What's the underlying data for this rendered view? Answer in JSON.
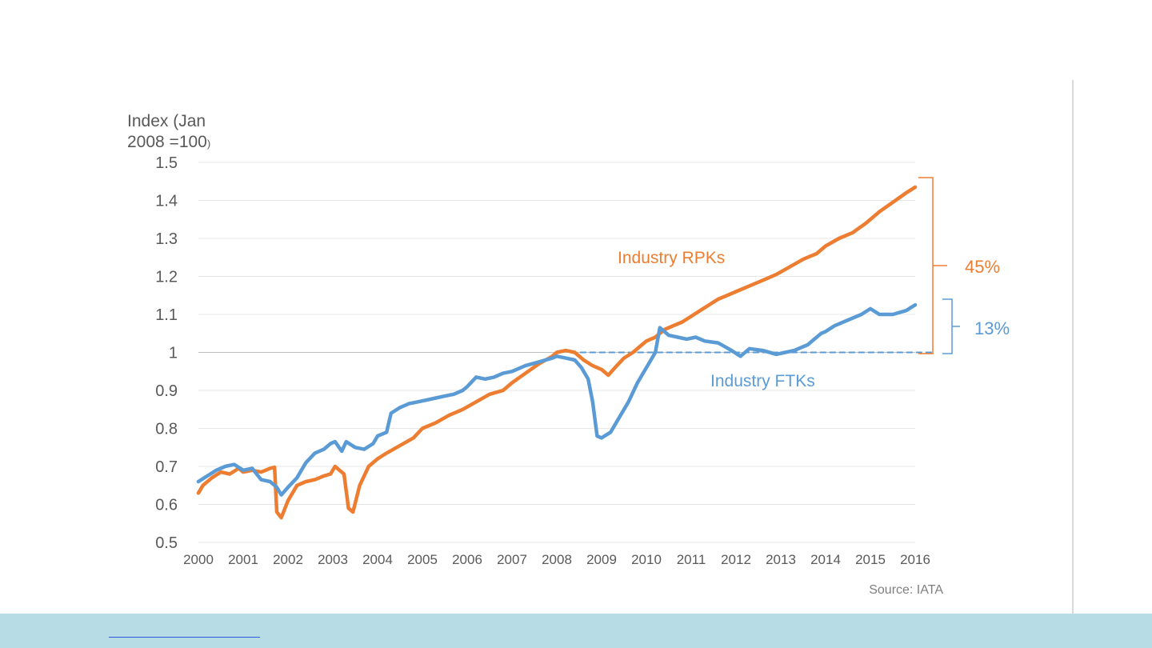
{
  "chart_data": {
    "type": "line",
    "ylabel_line1": "Index (Jan",
    "ylabel_line2": "2008 =100",
    "ylabel_paren": ")",
    "source": "Source: IATA",
    "ylim": [
      0.5,
      1.5
    ],
    "yticks": [
      "0.5",
      "0.6",
      "0.7",
      "0.8",
      "0.9",
      "1",
      "1.1",
      "1.2",
      "1.3",
      "1.4",
      "1.5"
    ],
    "xlim": [
      2000,
      2016
    ],
    "xticks": [
      "2000",
      "2001",
      "2002",
      "2003",
      "2004",
      "2005",
      "2006",
      "2007",
      "2008",
      "2009",
      "2010",
      "2011",
      "2012",
      "2013",
      "2014",
      "2015",
      "2016"
    ],
    "grid": true,
    "reference_line": {
      "y": 1.0,
      "style": "dashed",
      "from_x": 2008.3,
      "to_x": 2016.4
    },
    "series": [
      {
        "name": "Industry RPKs",
        "color": "#ed7d31",
        "points": [
          [
            2000,
            0.63
          ],
          [
            2000.1,
            0.65
          ],
          [
            2000.3,
            0.67
          ],
          [
            2000.5,
            0.685
          ],
          [
            2000.7,
            0.68
          ],
          [
            2000.9,
            0.695
          ],
          [
            2001.0,
            0.685
          ],
          [
            2001.2,
            0.69
          ],
          [
            2001.4,
            0.685
          ],
          [
            2001.5,
            0.69
          ],
          [
            2001.6,
            0.695
          ],
          [
            2001.7,
            0.698
          ],
          [
            2001.75,
            0.58
          ],
          [
            2001.85,
            0.565
          ],
          [
            2002.0,
            0.61
          ],
          [
            2002.2,
            0.65
          ],
          [
            2002.4,
            0.66
          ],
          [
            2002.6,
            0.665
          ],
          [
            2002.8,
            0.675
          ],
          [
            2002.95,
            0.68
          ],
          [
            2003.05,
            0.7
          ],
          [
            2003.15,
            0.69
          ],
          [
            2003.25,
            0.68
          ],
          [
            2003.35,
            0.59
          ],
          [
            2003.45,
            0.58
          ],
          [
            2003.6,
            0.65
          ],
          [
            2003.8,
            0.7
          ],
          [
            2004.0,
            0.72
          ],
          [
            2004.2,
            0.735
          ],
          [
            2004.5,
            0.755
          ],
          [
            2004.8,
            0.775
          ],
          [
            2005.0,
            0.8
          ],
          [
            2005.3,
            0.815
          ],
          [
            2005.6,
            0.835
          ],
          [
            2005.9,
            0.85
          ],
          [
            2006.2,
            0.87
          ],
          [
            2006.5,
            0.89
          ],
          [
            2006.8,
            0.9
          ],
          [
            2007.0,
            0.92
          ],
          [
            2007.3,
            0.945
          ],
          [
            2007.6,
            0.97
          ],
          [
            2007.9,
            0.99
          ],
          [
            2008.0,
            1.0
          ],
          [
            2008.2,
            1.005
          ],
          [
            2008.4,
            1.0
          ],
          [
            2008.6,
            0.98
          ],
          [
            2008.8,
            0.965
          ],
          [
            2009.0,
            0.955
          ],
          [
            2009.15,
            0.94
          ],
          [
            2009.3,
            0.96
          ],
          [
            2009.5,
            0.985
          ],
          [
            2009.7,
            1.0
          ],
          [
            2009.9,
            1.02
          ],
          [
            2010.0,
            1.03
          ],
          [
            2010.2,
            1.04
          ],
          [
            2010.4,
            1.06
          ],
          [
            2010.6,
            1.07
          ],
          [
            2010.8,
            1.08
          ],
          [
            2011.0,
            1.095
          ],
          [
            2011.2,
            1.11
          ],
          [
            2011.4,
            1.125
          ],
          [
            2011.6,
            1.14
          ],
          [
            2011.8,
            1.15
          ],
          [
            2012.0,
            1.16
          ],
          [
            2012.3,
            1.175
          ],
          [
            2012.6,
            1.19
          ],
          [
            2012.9,
            1.205
          ],
          [
            2013.2,
            1.225
          ],
          [
            2013.5,
            1.245
          ],
          [
            2013.8,
            1.26
          ],
          [
            2014.0,
            1.28
          ],
          [
            2014.3,
            1.3
          ],
          [
            2014.6,
            1.315
          ],
          [
            2014.9,
            1.34
          ],
          [
            2015.2,
            1.37
          ],
          [
            2015.5,
            1.395
          ],
          [
            2015.8,
            1.42
          ],
          [
            2016.0,
            1.435
          ]
        ]
      },
      {
        "name": "Industry FTKs",
        "color": "#5b9bd5",
        "points": [
          [
            2000,
            0.66
          ],
          [
            2000.2,
            0.675
          ],
          [
            2000.4,
            0.69
          ],
          [
            2000.6,
            0.7
          ],
          [
            2000.8,
            0.705
          ],
          [
            2001.0,
            0.69
          ],
          [
            2001.2,
            0.695
          ],
          [
            2001.4,
            0.665
          ],
          [
            2001.6,
            0.66
          ],
          [
            2001.75,
            0.645
          ],
          [
            2001.85,
            0.625
          ],
          [
            2002.0,
            0.645
          ],
          [
            2002.2,
            0.67
          ],
          [
            2002.4,
            0.71
          ],
          [
            2002.6,
            0.735
          ],
          [
            2002.8,
            0.745
          ],
          [
            2002.95,
            0.76
          ],
          [
            2003.05,
            0.765
          ],
          [
            2003.2,
            0.74
          ],
          [
            2003.3,
            0.765
          ],
          [
            2003.5,
            0.75
          ],
          [
            2003.7,
            0.745
          ],
          [
            2003.9,
            0.76
          ],
          [
            2004.0,
            0.78
          ],
          [
            2004.2,
            0.79
          ],
          [
            2004.3,
            0.84
          ],
          [
            2004.5,
            0.855
          ],
          [
            2004.7,
            0.865
          ],
          [
            2004.9,
            0.87
          ],
          [
            2005.1,
            0.875
          ],
          [
            2005.3,
            0.88
          ],
          [
            2005.5,
            0.885
          ],
          [
            2005.7,
            0.89
          ],
          [
            2005.9,
            0.9
          ],
          [
            2006.0,
            0.91
          ],
          [
            2006.2,
            0.935
          ],
          [
            2006.4,
            0.93
          ],
          [
            2006.6,
            0.935
          ],
          [
            2006.8,
            0.945
          ],
          [
            2007.0,
            0.95
          ],
          [
            2007.3,
            0.965
          ],
          [
            2007.6,
            0.975
          ],
          [
            2007.9,
            0.985
          ],
          [
            2008.0,
            0.99
          ],
          [
            2008.2,
            0.985
          ],
          [
            2008.4,
            0.98
          ],
          [
            2008.55,
            0.96
          ],
          [
            2008.7,
            0.93
          ],
          [
            2008.8,
            0.87
          ],
          [
            2008.9,
            0.78
          ],
          [
            2009.0,
            0.775
          ],
          [
            2009.2,
            0.79
          ],
          [
            2009.4,
            0.83
          ],
          [
            2009.6,
            0.87
          ],
          [
            2009.8,
            0.92
          ],
          [
            2010.0,
            0.96
          ],
          [
            2010.2,
            1.0
          ],
          [
            2010.3,
            1.065
          ],
          [
            2010.5,
            1.045
          ],
          [
            2010.7,
            1.04
          ],
          [
            2010.9,
            1.035
          ],
          [
            2011.1,
            1.04
          ],
          [
            2011.3,
            1.03
          ],
          [
            2011.6,
            1.025
          ],
          [
            2011.9,
            1.005
          ],
          [
            2012.1,
            0.99
          ],
          [
            2012.3,
            1.01
          ],
          [
            2012.6,
            1.005
          ],
          [
            2012.9,
            0.995
          ],
          [
            2013.1,
            1.0
          ],
          [
            2013.3,
            1.005
          ],
          [
            2013.6,
            1.02
          ],
          [
            2013.9,
            1.05
          ],
          [
            2014.0,
            1.055
          ],
          [
            2014.2,
            1.07
          ],
          [
            2014.5,
            1.085
          ],
          [
            2014.8,
            1.1
          ],
          [
            2015.0,
            1.115
          ],
          [
            2015.2,
            1.1
          ],
          [
            2015.5,
            1.1
          ],
          [
            2015.8,
            1.11
          ],
          [
            2016.0,
            1.125
          ]
        ]
      }
    ],
    "annotations": {
      "rpk_label": "Industry RPKs",
      "ftk_label": "Industry FTKs",
      "rpk_growth": "45%",
      "ftk_growth": "13%"
    }
  }
}
